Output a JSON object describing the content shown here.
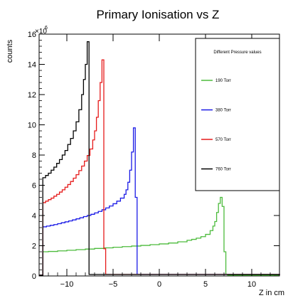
{
  "chart_data": {
    "type": "step",
    "title": "Primary Ionisation vs Z",
    "xlabel": "Z in cm",
    "ylabel": "counts",
    "y_scale_exponent_label": "×10",
    "y_scale_exponent_power": "6",
    "xlim": [
      -13,
      13
    ],
    "ylim": [
      0,
      16
    ],
    "x_ticks": [
      -10,
      -5,
      0,
      5,
      10
    ],
    "y_ticks": [
      0,
      2,
      4,
      6,
      8,
      10,
      12,
      14,
      16
    ],
    "grid": false,
    "legend": {
      "title": "Different Pressure values",
      "position": "top-right"
    },
    "series": [
      {
        "name": "190 Torr",
        "color": "#4cbb3c",
        "bins": [
          [
            -13.0,
            0.05
          ],
          [
            -12.6,
            1.6
          ],
          [
            -12.0,
            1.62
          ],
          [
            -11.0,
            1.66
          ],
          [
            -10.0,
            1.7
          ],
          [
            -9.0,
            1.74
          ],
          [
            -8.0,
            1.78
          ],
          [
            -7.0,
            1.82
          ],
          [
            -6.0,
            1.86
          ],
          [
            -5.0,
            1.9
          ],
          [
            -4.0,
            1.94
          ],
          [
            -3.0,
            1.98
          ],
          [
            -2.0,
            2.02
          ],
          [
            -1.0,
            2.07
          ],
          [
            0.0,
            2.12
          ],
          [
            1.0,
            2.18
          ],
          [
            2.0,
            2.26
          ],
          [
            3.0,
            2.36
          ],
          [
            3.5,
            2.42
          ],
          [
            4.0,
            2.5
          ],
          [
            4.5,
            2.6
          ],
          [
            5.0,
            2.75
          ],
          [
            5.5,
            3.0
          ],
          [
            5.8,
            3.3
          ],
          [
            6.0,
            3.6
          ],
          [
            6.2,
            4.2
          ],
          [
            6.4,
            4.8
          ],
          [
            6.6,
            5.2
          ],
          [
            6.8,
            4.6
          ],
          [
            7.0,
            1.6
          ],
          [
            7.2,
            0.1
          ],
          [
            7.4,
            0.05
          ],
          [
            13.0,
            0.05
          ]
        ]
      },
      {
        "name": "380 Torr",
        "color": "#1a1ae6",
        "bins": [
          [
            -13.0,
            0.05
          ],
          [
            -12.6,
            3.25
          ],
          [
            -12.2,
            3.3
          ],
          [
            -11.8,
            3.35
          ],
          [
            -11.4,
            3.4
          ],
          [
            -11.0,
            3.46
          ],
          [
            -10.6,
            3.52
          ],
          [
            -10.2,
            3.58
          ],
          [
            -9.8,
            3.64
          ],
          [
            -9.4,
            3.71
          ],
          [
            -9.0,
            3.78
          ],
          [
            -8.6,
            3.85
          ],
          [
            -8.2,
            3.93
          ],
          [
            -7.8,
            4.0
          ],
          [
            -7.4,
            4.08
          ],
          [
            -7.0,
            4.17
          ],
          [
            -6.6,
            4.27
          ],
          [
            -6.2,
            4.38
          ],
          [
            -5.8,
            4.5
          ],
          [
            -5.4,
            4.63
          ],
          [
            -5.0,
            4.78
          ],
          [
            -4.6,
            4.95
          ],
          [
            -4.2,
            5.15
          ],
          [
            -3.8,
            5.4
          ],
          [
            -3.6,
            5.7
          ],
          [
            -3.4,
            6.2
          ],
          [
            -3.2,
            7.0
          ],
          [
            -3.0,
            8.2
          ],
          [
            -2.8,
            9.8
          ],
          [
            -2.6,
            5.2
          ],
          [
            -2.4,
            0.1
          ],
          [
            13.0,
            0.05
          ]
        ]
      },
      {
        "name": "570 Torr",
        "color": "#e61a1a",
        "bins": [
          [
            -13.0,
            0.05
          ],
          [
            -12.6,
            4.85
          ],
          [
            -12.3,
            4.95
          ],
          [
            -12.0,
            5.05
          ],
          [
            -11.7,
            5.15
          ],
          [
            -11.4,
            5.28
          ],
          [
            -11.1,
            5.4
          ],
          [
            -10.8,
            5.55
          ],
          [
            -10.5,
            5.7
          ],
          [
            -10.2,
            5.87
          ],
          [
            -9.9,
            6.05
          ],
          [
            -9.6,
            6.25
          ],
          [
            -9.3,
            6.47
          ],
          [
            -9.0,
            6.7
          ],
          [
            -8.7,
            6.97
          ],
          [
            -8.4,
            7.27
          ],
          [
            -8.1,
            7.6
          ],
          [
            -7.8,
            7.97
          ],
          [
            -7.5,
            8.4
          ],
          [
            -7.2,
            9.0
          ],
          [
            -7.0,
            9.6
          ],
          [
            -6.8,
            10.5
          ],
          [
            -6.6,
            11.6
          ],
          [
            -6.4,
            12.8
          ],
          [
            -6.2,
            14.3
          ],
          [
            -6.0,
            1.8
          ],
          [
            -5.8,
            0.1
          ],
          [
            13.0,
            0.05
          ]
        ]
      },
      {
        "name": "760 Torr",
        "color": "#000000",
        "bins": [
          [
            -13.0,
            0.05
          ],
          [
            -12.6,
            6.5
          ],
          [
            -12.3,
            6.65
          ],
          [
            -12.0,
            6.8
          ],
          [
            -11.7,
            7.0
          ],
          [
            -11.4,
            7.2
          ],
          [
            -11.1,
            7.45
          ],
          [
            -10.8,
            7.7
          ],
          [
            -10.5,
            8.0
          ],
          [
            -10.2,
            8.3
          ],
          [
            -9.9,
            8.7
          ],
          [
            -9.6,
            9.1
          ],
          [
            -9.3,
            9.6
          ],
          [
            -9.0,
            10.2
          ],
          [
            -8.7,
            11.0
          ],
          [
            -8.4,
            12.0
          ],
          [
            -8.2,
            13.0
          ],
          [
            -8.0,
            14.0
          ],
          [
            -7.8,
            15.5
          ],
          [
            -7.6,
            0.1
          ],
          [
            13.0,
            0.05
          ]
        ]
      }
    ]
  }
}
